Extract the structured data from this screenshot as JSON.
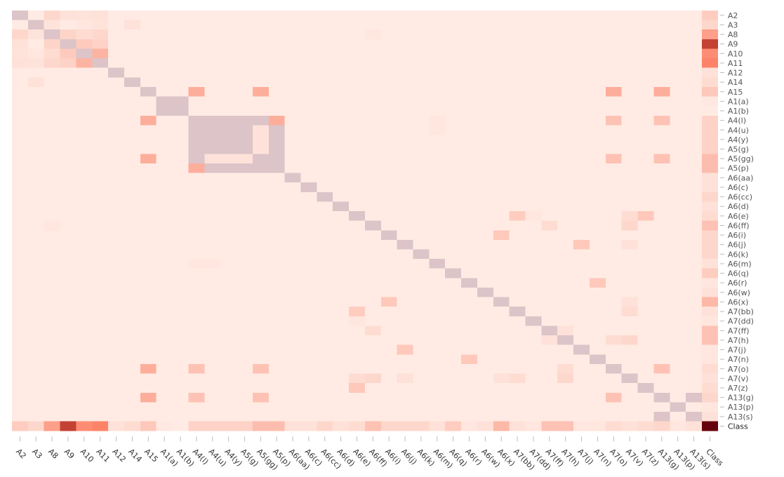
{
  "chart_data": {
    "type": "heatmap",
    "labels": [
      "A2",
      "A3",
      "A8",
      "A9",
      "A10",
      "A11",
      "A12",
      "A14",
      "A15",
      "A1(a)",
      "A1(b)",
      "A4(l)",
      "A4(u)",
      "A4(y)",
      "A5(g)",
      "A5(gg)",
      "A5(p)",
      "A6(aa)",
      "A6(c)",
      "A6(cc)",
      "A6(d)",
      "A6(e)",
      "A6(ff)",
      "A6(i)",
      "A6(j)",
      "A6(k)",
      "A6(m)",
      "A6(q)",
      "A6(r)",
      "A6(w)",
      "A6(x)",
      "A7(bb)",
      "A7(dd)",
      "A7(ff)",
      "A7(h)",
      "A7(j)",
      "A7(n)",
      "A7(o)",
      "A7(v)",
      "A7(z)",
      "A13(g)",
      "A13(p)",
      "A13(s)",
      "Class"
    ],
    "x_labels": [
      "A2",
      "A3",
      "A8",
      "A9",
      "A10",
      "A11",
      "A12",
      "A14",
      "A15",
      "A1(a)",
      "A1(b)",
      "A4(l)",
      "A4(u)",
      "A4(y)",
      "A5(g)",
      "A5(gg)",
      "A5(p)",
      "A6(aa)",
      "A6(c)",
      "A6(cc)",
      "A6(d)",
      "A6(e)",
      "A6(ff)",
      "A6(i)",
      "A6(j)",
      "A6(k)",
      "A6(m)",
      "A6(q)",
      "A6(r)",
      "A6(w)",
      "A6(x)",
      "A7(bb)",
      "A7(dd)",
      "A7(ff)",
      "A7(h)",
      "A7(j)",
      "A7(n)",
      "A7(o)",
      "A7(v)",
      "A7(z)",
      "A13(g)",
      "A13(p)",
      "A13(s)",
      "Class"
    ],
    "grid": false,
    "colorbar": "none",
    "color_scale": {
      "low": "#fff5f0",
      "mid": "#fb6a4a",
      "high": "#67000d",
      "diagonal": "#dcc4c8"
    },
    "diagonal_value": 1.0,
    "default_value": 0.04,
    "cells": [
      [
        0,
        2,
        0.12
      ],
      [
        0,
        3,
        0.08
      ],
      [
        0,
        4,
        0.07
      ],
      [
        0,
        5,
        0.08
      ],
      [
        0,
        43,
        0.16
      ],
      [
        1,
        2,
        0.07
      ],
      [
        1,
        4,
        0.06
      ],
      [
        1,
        5,
        0.07
      ],
      [
        1,
        7,
        0.08
      ],
      [
        1,
        43,
        0.12
      ],
      [
        2,
        3,
        0.13
      ],
      [
        2,
        4,
        0.1
      ],
      [
        2,
        5,
        0.12
      ],
      [
        2,
        43,
        0.34
      ],
      [
        3,
        4,
        0.17
      ],
      [
        3,
        5,
        0.14
      ],
      [
        3,
        43,
        0.72
      ],
      [
        4,
        5,
        0.26
      ],
      [
        4,
        43,
        0.41
      ],
      [
        5,
        43,
        0.45
      ],
      [
        6,
        43,
        0.08
      ],
      [
        7,
        43,
        0.1
      ],
      [
        8,
        11,
        0.28
      ],
      [
        8,
        15,
        0.28
      ],
      [
        8,
        37,
        0.28
      ],
      [
        8,
        40,
        0.28
      ],
      [
        8,
        43,
        0.18
      ],
      [
        9,
        10,
        1.0
      ],
      [
        9,
        43,
        0.05
      ],
      [
        11,
        12,
        1.0
      ],
      [
        11,
        13,
        1.0
      ],
      [
        11,
        14,
        1.0
      ],
      [
        11,
        15,
        1.0
      ],
      [
        11,
        16,
        0.28
      ],
      [
        11,
        37,
        0.2
      ],
      [
        11,
        40,
        0.2
      ],
      [
        11,
        43,
        0.14
      ],
      [
        12,
        13,
        1.0
      ],
      [
        12,
        14,
        1.0
      ],
      [
        12,
        15,
        0.08
      ],
      [
        12,
        16,
        1.0
      ],
      [
        12,
        43,
        0.14
      ],
      [
        13,
        14,
        1.0
      ],
      [
        13,
        15,
        0.08
      ],
      [
        13,
        16,
        1.0
      ],
      [
        13,
        43,
        0.14
      ],
      [
        14,
        15,
        0.08
      ],
      [
        14,
        16,
        1.0
      ],
      [
        14,
        43,
        0.14
      ],
      [
        15,
        16,
        1.0
      ],
      [
        15,
        37,
        0.2
      ],
      [
        15,
        40,
        0.2
      ],
      [
        15,
        43,
        0.22
      ],
      [
        16,
        43,
        0.22
      ],
      [
        17,
        43,
        0.08
      ],
      [
        18,
        43,
        0.08
      ],
      [
        19,
        43,
        0.12
      ],
      [
        20,
        43,
        0.08
      ],
      [
        21,
        32,
        0.2
      ],
      [
        21,
        39,
        0.18
      ],
      [
        21,
        43,
        0.1
      ],
      [
        22,
        33,
        0.18
      ],
      [
        22,
        38,
        0.12
      ],
      [
        22,
        43,
        0.2
      ],
      [
        23,
        43,
        0.12
      ],
      [
        24,
        35,
        0.2
      ],
      [
        24,
        43,
        0.12
      ],
      [
        25,
        43,
        0.12
      ],
      [
        26,
        43,
        0.08
      ],
      [
        27,
        43,
        0.16
      ],
      [
        28,
        36,
        0.2
      ],
      [
        28,
        43,
        0.06
      ],
      [
        29,
        43,
        0.08
      ],
      [
        30,
        43,
        0.24
      ],
      [
        31,
        38,
        0.1
      ],
      [
        31,
        43,
        0.08
      ],
      [
        32,
        43,
        0.06
      ],
      [
        33,
        34,
        0.08
      ],
      [
        33,
        43,
        0.2
      ],
      [
        34,
        43,
        0.2
      ],
      [
        35,
        43,
        0.06
      ],
      [
        36,
        43,
        0.06
      ],
      [
        37,
        40,
        0.2
      ],
      [
        37,
        43,
        0.1
      ],
      [
        38,
        43,
        0.08
      ],
      [
        39,
        43,
        0.1
      ],
      [
        40,
        42,
        1.0
      ],
      [
        40,
        43,
        0.12
      ],
      [
        41,
        43,
        0.06
      ],
      [
        42,
        43,
        0.08
      ],
      [
        22,
        2,
        0.06
      ],
      [
        26,
        11,
        0.06
      ],
      [
        26,
        12,
        0.06
      ],
      [
        30,
        23,
        0.18
      ],
      [
        31,
        21,
        0.16
      ],
      [
        38,
        21,
        0.1
      ],
      [
        38,
        34,
        0.12
      ],
      [
        37,
        34,
        0.1
      ],
      [
        35,
        24,
        0.18
      ],
      [
        36,
        28,
        0.18
      ],
      [
        32,
        21,
        0.06
      ],
      [
        33,
        22,
        0.1
      ],
      [
        24,
        38,
        0.08
      ],
      [
        30,
        38,
        0.08
      ]
    ]
  }
}
